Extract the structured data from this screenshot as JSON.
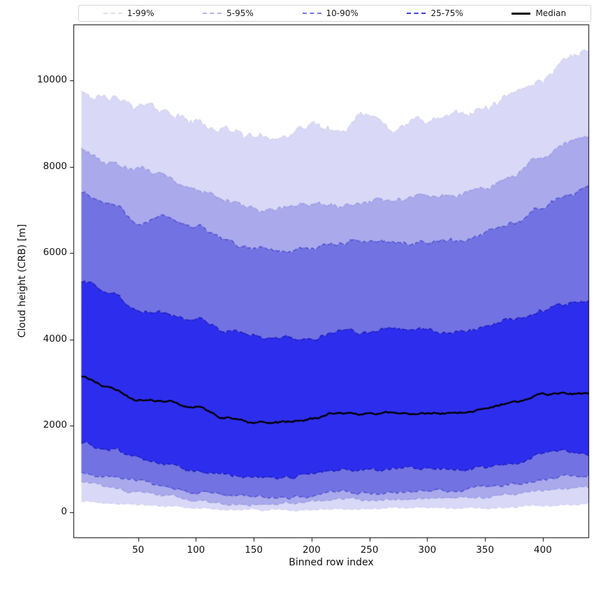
{
  "chart_data": {
    "type": "area",
    "title": "",
    "xlabel": "Binned row index",
    "ylabel": "Cloud height (CRB) [m]",
    "xlim": [
      -6,
      440
    ],
    "ylim": [
      -600,
      11300
    ],
    "xticks": [
      50,
      100,
      150,
      200,
      250,
      300,
      350,
      400
    ],
    "yticks": [
      0,
      2000,
      4000,
      6000,
      8000,
      10000
    ],
    "grid": false,
    "legend_position": "top-expanded",
    "x": [
      1,
      25,
      50,
      75,
      100,
      125,
      150,
      175,
      200,
      225,
      250,
      275,
      300,
      325,
      350,
      375,
      400,
      420,
      440
    ],
    "percentiles": {
      "p99": {
        "values": [
          9800,
          9550,
          9400,
          9300,
          9050,
          8850,
          8700,
          8720,
          8900,
          8820,
          9150,
          8950,
          9100,
          9150,
          9350,
          9600,
          10050,
          10550,
          10700
        ],
        "jitter": 130
      },
      "p95": {
        "values": [
          8400,
          8100,
          7900,
          7800,
          7500,
          7200,
          7000,
          7050,
          7150,
          7100,
          7250,
          7200,
          7300,
          7350,
          7500,
          7800,
          8200,
          8500,
          8700
        ],
        "jitter": 95
      },
      "p90": {
        "values": [
          7400,
          7150,
          6750,
          6800,
          6600,
          6300,
          6100,
          6050,
          6150,
          6200,
          6300,
          6250,
          6300,
          6300,
          6450,
          6700,
          7100,
          7300,
          7550
        ],
        "jitter": 85
      },
      "p75": {
        "values": [
          5350,
          5100,
          4700,
          4600,
          4500,
          4200,
          4050,
          4000,
          4050,
          4200,
          4150,
          4250,
          4200,
          4150,
          4250,
          4450,
          4700,
          4850,
          4900
        ],
        "jitter": 75
      },
      "median": {
        "values": [
          3150,
          2900,
          2600,
          2550,
          2450,
          2200,
          2050,
          2080,
          2150,
          2300,
          2250,
          2300,
          2300,
          2300,
          2400,
          2550,
          2700,
          2750,
          2750
        ],
        "jitter": 40
      },
      "p25": {
        "values": [
          1600,
          1450,
          1250,
          1150,
          1000,
          900,
          800,
          800,
          850,
          950,
          950,
          1000,
          1000,
          1000,
          1050,
          1150,
          1350,
          1400,
          1400
        ],
        "jitter": 60
      },
      "p10": {
        "values": [
          950,
          850,
          700,
          600,
          450,
          380,
          350,
          350,
          380,
          450,
          450,
          480,
          480,
          500,
          550,
          650,
          750,
          800,
          800
        ],
        "jitter": 55
      },
      "p5": {
        "values": [
          700,
          600,
          450,
          380,
          280,
          220,
          200,
          200,
          220,
          280,
          280,
          300,
          300,
          320,
          350,
          420,
          500,
          550,
          560
        ],
        "jitter": 40
      },
      "p1": {
        "values": [
          250,
          220,
          180,
          140,
          80,
          60,
          50,
          50,
          60,
          80,
          80,
          90,
          90,
          100,
          110,
          130,
          160,
          180,
          190
        ],
        "jitter": 25
      }
    },
    "bands": [
      {
        "label": "1-99%",
        "lower": "p1",
        "upper": "p99",
        "fill": "#d9d9f7",
        "edge": "#d2d2ee"
      },
      {
        "label": "5-95%",
        "lower": "p5",
        "upper": "p95",
        "fill": "#a9a9ec",
        "edge": "#9a9ae0"
      },
      {
        "label": "10-90%",
        "lower": "p10",
        "upper": "p90",
        "fill": "#7272e3",
        "edge": "#4d4dcb"
      },
      {
        "label": "25-75%",
        "lower": "p25",
        "upper": "p75",
        "fill": "#2d2dee",
        "edge": "#1b1bb0"
      }
    ],
    "median_line": {
      "label": "Median",
      "color": "#000000",
      "width": 2.4
    },
    "legend": {
      "entries": [
        {
          "label": "1-99%",
          "color": "#ddddf0",
          "style": "dashed"
        },
        {
          "label": "5-95%",
          "color": "#b4b4e8",
          "style": "dashed"
        },
        {
          "label": "10-90%",
          "color": "#7a7ae2",
          "style": "dashed"
        },
        {
          "label": "25-75%",
          "color": "#3c3cdd",
          "style": "dashed"
        },
        {
          "label": "Median",
          "color": "#000000",
          "style": "solid"
        }
      ]
    }
  }
}
